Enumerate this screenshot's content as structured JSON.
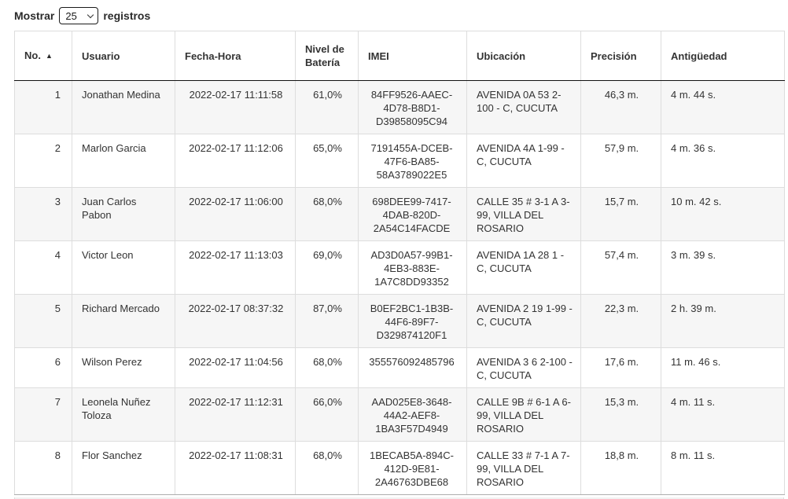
{
  "controls": {
    "show_label": "Mostrar",
    "records_label": "registros",
    "page_size_value": "25",
    "page_size_options": [
      "25"
    ],
    "sort_indicator": "▲"
  },
  "colors": {
    "text": "#333333",
    "grid_border": "#dddddd",
    "header_border": "#111111",
    "stripe_odd": "#f6f6f6"
  },
  "table": {
    "columns": [
      {
        "label": "No.",
        "sorted": "asc"
      },
      {
        "label": "Usuario"
      },
      {
        "label": "Fecha-Hora"
      },
      {
        "label": "Nivel de Batería"
      },
      {
        "label": "IMEI"
      },
      {
        "label": "Ubicación"
      },
      {
        "label": "Precisión"
      },
      {
        "label": "Antigüedad"
      }
    ],
    "rows": [
      {
        "no": "1",
        "usuario": "Jonathan Medina",
        "fecha": "2022-02-17 11:11:58",
        "bateria": "61,0%",
        "imei": "84FF9526-AAEC-4D78-B8D1-D39858095C94",
        "ubicacion": "AVENIDA 0A 53 2-100 - C, CUCUTA",
        "precision": "46,3 m.",
        "antiguedad": "4 m. 44 s."
      },
      {
        "no": "2",
        "usuario": "Marlon Garcia",
        "fecha": "2022-02-17 11:12:06",
        "bateria": "65,0%",
        "imei": "7191455A-DCEB-47F6-BA85-58A3789022E5",
        "ubicacion": "AVENIDA 4A 1-99 - C, CUCUTA",
        "precision": "57,9 m.",
        "antiguedad": "4 m. 36 s."
      },
      {
        "no": "3",
        "usuario": "Juan Carlos Pabon",
        "fecha": "2022-02-17 11:06:00",
        "bateria": "68,0%",
        "imei": "698DEE99-7417-4DAB-820D-2A54C14FACDE",
        "ubicacion": "CALLE 35 # 3-1 A 3-99, VILLA DEL ROSARIO",
        "precision": "15,7 m.",
        "antiguedad": "10 m. 42 s."
      },
      {
        "no": "4",
        "usuario": "Victor Leon",
        "fecha": "2022-02-17 11:13:03",
        "bateria": "69,0%",
        "imei": "AD3D0A57-99B1-4EB3-883E-1A7C8DD93352",
        "ubicacion": "AVENIDA 1A 28 1 - C, CUCUTA",
        "precision": "57,4 m.",
        "antiguedad": "3 m. 39 s."
      },
      {
        "no": "5",
        "usuario": "Richard Mercado",
        "fecha": "2022-02-17 08:37:32",
        "bateria": "87,0%",
        "imei": "B0EF2BC1-1B3B-44F6-89F7-D329874120F1",
        "ubicacion": "AVENIDA 2 19 1-99 - C, CUCUTA",
        "precision": "22,3 m.",
        "antiguedad": "2 h. 39 m."
      },
      {
        "no": "6",
        "usuario": "Wilson Perez",
        "fecha": "2022-02-17 11:04:56",
        "bateria": "68,0%",
        "imei": "355576092485796",
        "ubicacion": "AVENIDA 3 6 2-100 - C, CUCUTA",
        "precision": "17,6 m.",
        "antiguedad": "11 m. 46 s."
      },
      {
        "no": "7",
        "usuario": "Leonela Nuñez Toloza",
        "fecha": "2022-02-17 11:12:31",
        "bateria": "66,0%",
        "imei": "AAD025E8-3648-44A2-AEF8-1BA3F57D4949",
        "ubicacion": "CALLE 9B # 6-1 A 6-99, VILLA DEL ROSARIO",
        "precision": "15,3 m.",
        "antiguedad": "4 m. 11 s."
      },
      {
        "no": "8",
        "usuario": "Flor Sanchez",
        "fecha": "2022-02-17 11:08:31",
        "bateria": "68,0%",
        "imei": "1BECAB5A-894C-412D-9E81-2A46763DBE68",
        "ubicacion": "CALLE 33 # 7-1 A 7-99, VILLA DEL ROSARIO",
        "precision": "18,8 m.",
        "antiguedad": "8 m. 11 s."
      }
    ]
  }
}
